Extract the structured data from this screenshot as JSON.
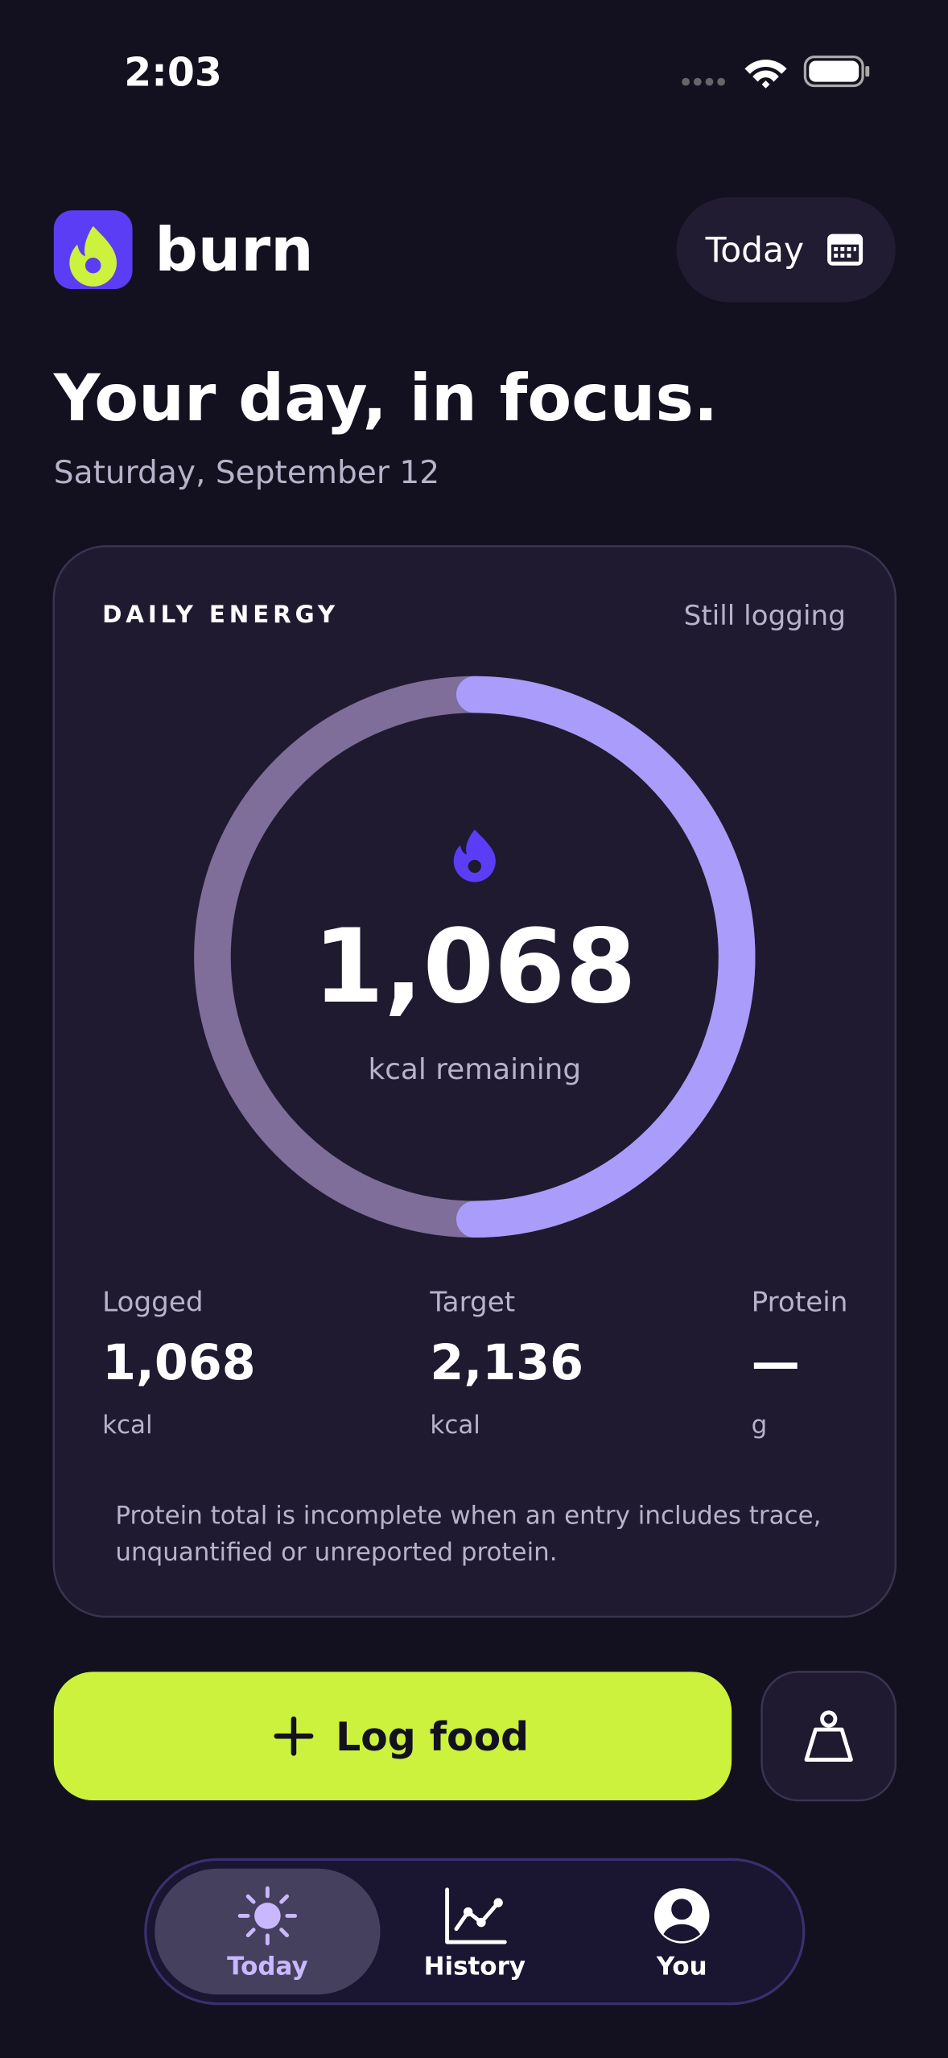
{
  "status_bar": {
    "time": "2:03"
  },
  "header": {
    "app_name": "burn",
    "date_button": "Today"
  },
  "title": "Your day, in focus.",
  "date": "Saturday, September 12",
  "energy_card": {
    "label": "DAILY ENERGY",
    "status": "Still logging",
    "remaining": "1,068",
    "remaining_label": "kcal remaining",
    "stats": [
      {
        "label": "Logged",
        "value": "1,068",
        "unit": "kcal"
      },
      {
        "label": "Target",
        "value": "2,136",
        "unit": "kcal"
      },
      {
        "label": "Protein",
        "value": "—",
        "unit": "g"
      }
    ],
    "note": [
      "Protein total is incomplete when an entry includes trace,",
      "unquantified or unreported protein."
    ]
  },
  "log_button": "Log food",
  "nav": [
    {
      "label": "Today",
      "active": true
    },
    {
      "label": "History",
      "active": false
    },
    {
      "label": "You",
      "active": false
    }
  ]
}
